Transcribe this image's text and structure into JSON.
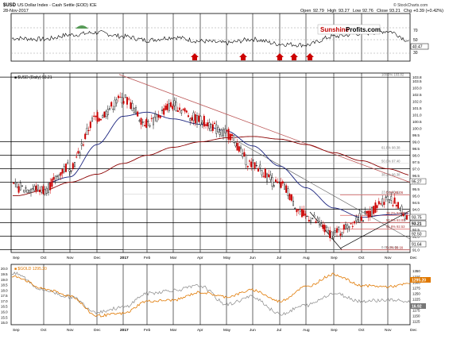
{
  "header": {
    "symbol": "$USD",
    "name": "US Dollar Index - Cash Settle (EOD) ICE",
    "date": "28-Nov-2017",
    "open_label": "Open",
    "open": "92.79",
    "high_label": "High",
    "high": "93.27",
    "low_label": "Low",
    "low": "92.76",
    "close_label": "Close",
    "close": "93.21",
    "chg_label": "Chg",
    "chg": "+0.39 (+0.42%)",
    "stockcharts": "© StockCharts.com"
  },
  "watermark": {
    "part1": "Sunshine",
    "part2": "Profits.com"
  },
  "osc_panel": {
    "ticks": [
      "70",
      "50",
      "30"
    ],
    "value_label": "40.47",
    "arrows_count": 5
  },
  "price_panel": {
    "legend": "■ $USD (Daily) 93.21",
    "y_ticks": [
      "103.8",
      "103.5",
      "103.0",
      "102.5",
      "102.0",
      "101.5",
      "101.0",
      "100.5",
      "100.0",
      "99.5",
      "99.0",
      "98.5",
      "98.0",
      "97.5",
      "97.0",
      "96.5",
      "96.0",
      "95.5",
      "95.0",
      "94.5",
      "94.0",
      "93.5",
      "93.0",
      "92.5",
      "92.0",
      "91.5",
      "91.0"
    ],
    "fib_labels": [
      "100.0% 103.82",
      "61.8% 98.38",
      "50.0% 97.40",
      "38.2% 96.38",
      "23.6% 95.11",
      "0.0% 91.01"
    ],
    "fib2_labels": [
      "0.0% 95.06",
      "38.2% 93.55",
      "50.0% 93.00",
      "61.8% 92.53",
      "0.0% 90.99"
    ],
    "price_tag": "93.21",
    "tag2": "93.75",
    "tag3": "92.50",
    "tag4": "95.27",
    "tag5": "91.64"
  },
  "bottom_panel": {
    "legend": "■ $GOLD 1295.20",
    "left_ticks": [
      "20.0",
      "19.5",
      "19.0",
      "18.5",
      "18.0",
      "17.5",
      "17.0",
      "16.5",
      "16.0",
      "15.5",
      "15.0"
    ],
    "right_ticks": [
      "1350",
      "1325",
      "1300",
      "1275",
      "1250",
      "1225",
      "1200",
      "1175",
      "1150",
      "1125"
    ],
    "gold_tag": "1295.20",
    "silver_tag": "16.92",
    "bottom_left": "15.0"
  },
  "x_axis": [
    "Sep",
    "Oct",
    "Nov",
    "Dec",
    "2017",
    "Feb",
    "Mar",
    "Apr",
    "May",
    "Jun",
    "Jul",
    "Aug",
    "Sep",
    "Oct",
    "Nov",
    "Dec"
  ],
  "colors": {
    "candle_up": "#000000",
    "candle_down": "#cc0000",
    "ma_fast": "#1a237e",
    "ma_slow": "#8b0000",
    "gold": "#e07800",
    "silver": "#888888",
    "fib": "#d86060",
    "arrow": "#cc0000"
  },
  "chart_data": {
    "type": "line",
    "title": "US Dollar Index - Cash Settle (EOD) ICE",
    "x": [
      "Sep",
      "Oct",
      "Nov",
      "Dec",
      "2017",
      "Feb",
      "Mar",
      "Apr",
      "May",
      "Jun",
      "Jul",
      "Aug",
      "Sep",
      "Oct",
      "Nov",
      "Dec"
    ],
    "series": [
      {
        "name": "$USD",
        "values": [
          95.6,
          95.5,
          97.2,
          100.8,
          102.2,
          100.4,
          101.7,
          100.6,
          99.6,
          97.3,
          95.8,
          93.5,
          92.2,
          93.4,
          94.8,
          93.2
        ]
      },
      {
        "name": "$GOLD",
        "values": [
          1325,
          1270,
          1240,
          1150,
          1160,
          1215,
          1220,
          1255,
          1235,
          1265,
          1215,
          1280,
          1335,
          1285,
          1280,
          1295
        ]
      },
      {
        "name": "silver",
        "values": [
          19.5,
          18.0,
          17.4,
          16.0,
          16.4,
          17.7,
          18.0,
          18.4,
          16.7,
          17.4,
          15.8,
          16.6,
          17.7,
          17.0,
          17.1,
          16.9
        ]
      },
      {
        "name": "oscillator",
        "values": [
          48,
          46,
          55,
          60,
          52,
          44,
          50,
          42,
          38,
          46,
          36,
          34,
          52,
          58,
          63,
          40
        ]
      }
    ],
    "fibonacci_levels": [
      {
        "label": "100.0%",
        "value": 103.82
      },
      {
        "label": "61.8%",
        "value": 98.38
      },
      {
        "label": "50.0%",
        "value": 97.4
      },
      {
        "label": "38.2%",
        "value": 96.38
      },
      {
        "label": "23.6%",
        "value": 95.11
      },
      {
        "label": "0.0%",
        "value": 91.01
      }
    ],
    "ylim": [
      90.8,
      104.1
    ]
  }
}
